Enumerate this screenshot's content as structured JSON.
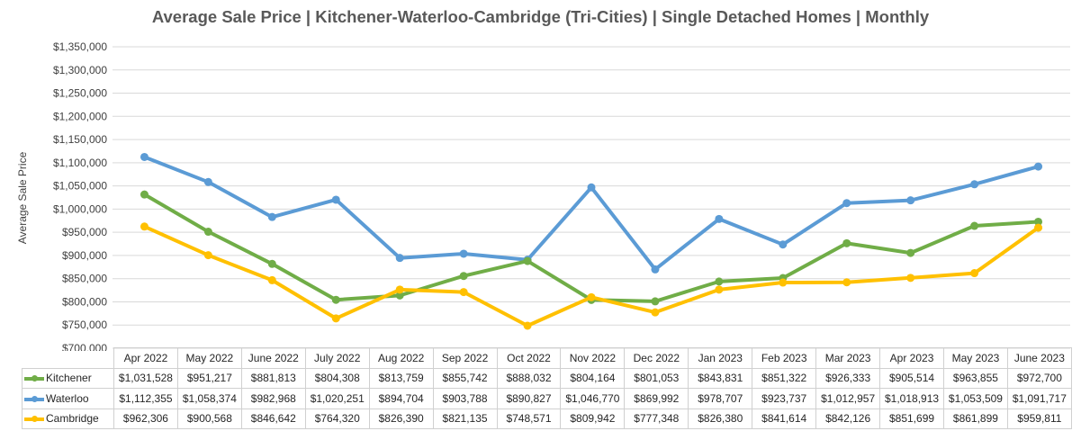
{
  "chart_data": {
    "type": "line",
    "title": "Average Sale Price | Kitchener-Waterloo-Cambridge (Tri-Cities) | Single Detached Homes | Monthly",
    "xlabel": "",
    "ylabel": "Average Sale Price",
    "ylim": [
      700000,
      1350000
    ],
    "ytick_values": [
      700000,
      750000,
      800000,
      850000,
      900000,
      950000,
      1000000,
      1050000,
      1100000,
      1150000,
      1200000,
      1250000,
      1300000,
      1350000
    ],
    "ytick_labels": [
      "$700,000",
      "$750,000",
      "$800,000",
      "$850,000",
      "$900,000",
      "$950,000",
      "$1,000,000",
      "$1,050,000",
      "$1,100,000",
      "$1,150,000",
      "$1,200,000",
      "$1,250,000",
      "$1,300,000",
      "$1,350,000"
    ],
    "grid": true,
    "legend": "data-table",
    "categories": [
      "Apr 2022",
      "May 2022",
      "June 2022",
      "July 2022",
      "Aug 2022",
      "Sep 2022",
      "Oct 2022",
      "Nov 2022",
      "Dec 2022",
      "Jan 2023",
      "Feb 2023",
      "Mar 2023",
      "Apr 2023",
      "May 2023",
      "June 2023"
    ],
    "series": [
      {
        "name": "Kitchener",
        "color": "#70ad47",
        "values": [
          1031528,
          951217,
          881813,
          804308,
          813759,
          855742,
          888032,
          804164,
          801053,
          843831,
          851322,
          926333,
          905514,
          963855,
          972700
        ],
        "labels": [
          "$1,031,528",
          "$951,217",
          "$881,813",
          "$804,308",
          "$813,759",
          "$855,742",
          "$888,032",
          "$804,164",
          "$801,053",
          "$843,831",
          "$851,322",
          "$926,333",
          "$905,514",
          "$963,855",
          "$972,700"
        ]
      },
      {
        "name": "Waterloo",
        "color": "#5b9bd5",
        "values": [
          1112355,
          1058374,
          982968,
          1020251,
          894704,
          903788,
          890827,
          1046770,
          869992,
          978707,
          923737,
          1012957,
          1018913,
          1053509,
          1091717
        ],
        "labels": [
          "$1,112,355",
          "$1,058,374",
          "$982,968",
          "$1,020,251",
          "$894,704",
          "$903,788",
          "$890,827",
          "$1,046,770",
          "$869,992",
          "$978,707",
          "$923,737",
          "$1,012,957",
          "$1,018,913",
          "$1,053,509",
          "$1,091,717"
        ]
      },
      {
        "name": "Cambridge",
        "color": "#ffc000",
        "values": [
          962306,
          900568,
          846642,
          764320,
          826390,
          821135,
          748571,
          809942,
          777348,
          826380,
          841614,
          842126,
          851699,
          861899,
          959811
        ],
        "labels": [
          "$962,306",
          "$900,568",
          "$846,642",
          "$764,320",
          "$826,390",
          "$821,135",
          "$748,571",
          "$809,942",
          "$777,348",
          "$826,380",
          "$841,614",
          "$842,126",
          "$851,699",
          "$861,899",
          "$959,811"
        ]
      }
    ]
  }
}
